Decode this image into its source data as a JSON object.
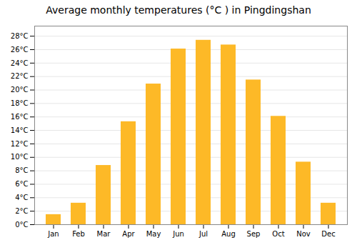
{
  "chart_data": {
    "type": "bar",
    "title": "Average monthly temperatures (°C ) in Pingdingshan",
    "categories": [
      "Jan",
      "Feb",
      "Mar",
      "Apr",
      "May",
      "Jun",
      "Jul",
      "Aug",
      "Sep",
      "Oct",
      "Nov",
      "Dec"
    ],
    "values": [
      1.5,
      3.2,
      8.8,
      15.3,
      20.9,
      26.1,
      27.4,
      26.7,
      21.5,
      16.1,
      9.3,
      3.2
    ],
    "color": "#FDB927",
    "ylim": [
      0,
      29.5
    ],
    "yticks": [
      {
        "value": 0,
        "label": "0°C"
      },
      {
        "value": 2,
        "label": "2°C"
      },
      {
        "value": 4,
        "label": "4°C"
      },
      {
        "value": 6,
        "label": "6°C"
      },
      {
        "value": 8,
        "label": "8°C"
      },
      {
        "value": 10,
        "label": "10°C"
      },
      {
        "value": 12,
        "label": "12°C"
      },
      {
        "value": 14,
        "label": "14°C"
      },
      {
        "value": 16,
        "label": "16°C"
      },
      {
        "value": 18,
        "label": "18°C"
      },
      {
        "value": 20,
        "label": "20°C"
      },
      {
        "value": 22,
        "label": "22°C"
      },
      {
        "value": 24,
        "label": "24°C"
      },
      {
        "value": 26,
        "label": "26°C"
      },
      {
        "value": 28,
        "label": "28°C"
      }
    ],
    "grid": true
  }
}
